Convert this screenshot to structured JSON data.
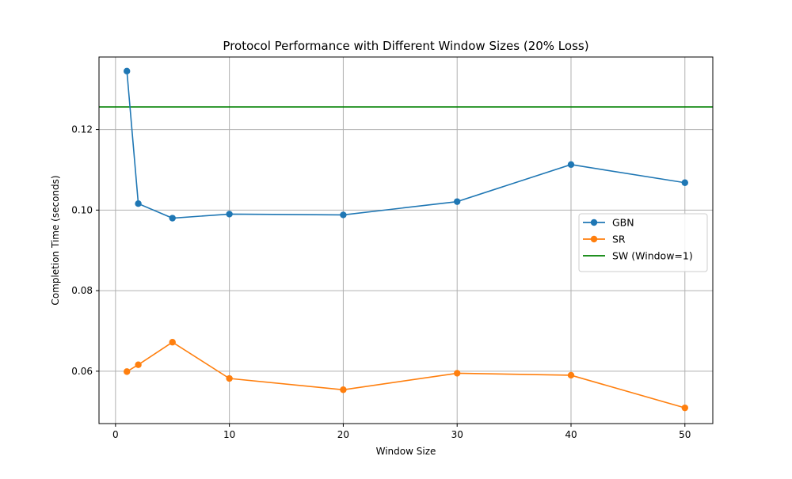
{
  "chart_data": {
    "type": "line",
    "title": "Protocol Performance with Different Window Sizes (20% Loss)",
    "xlabel": "Window Size",
    "ylabel": "Completion Time (seconds)",
    "xlim": [
      -1.45,
      52.45
    ],
    "ylim": [
      0.047,
      0.138
    ],
    "xticks": [
      0,
      10,
      20,
      30,
      40,
      50
    ],
    "xtick_labels": [
      "0",
      "10",
      "20",
      "30",
      "40",
      "50"
    ],
    "yticks": [
      0.06,
      0.08,
      0.1,
      0.12
    ],
    "ytick_labels": [
      "0.06",
      "0.08",
      "0.10",
      "0.12"
    ],
    "grid": true,
    "legend_position": "center-right",
    "series": [
      {
        "name": "GBN",
        "color": "#1f77b4",
        "marker": "circle",
        "x": [
          1,
          2,
          5,
          10,
          20,
          30,
          40,
          50
        ],
        "y": [
          0.1345,
          0.1016,
          0.098,
          0.099,
          0.0988,
          0.1021,
          0.1113,
          0.1068
        ]
      },
      {
        "name": "SR",
        "color": "#ff7f0e",
        "marker": "circle",
        "x": [
          1,
          2,
          5,
          10,
          20,
          30,
          40,
          50
        ],
        "y": [
          0.0599,
          0.0616,
          0.0672,
          0.0582,
          0.0554,
          0.0595,
          0.059,
          0.0509
        ]
      }
    ],
    "hlines": [
      {
        "name": "SW (Window=1)",
        "color": "#008000",
        "y": 0.1256
      }
    ]
  }
}
